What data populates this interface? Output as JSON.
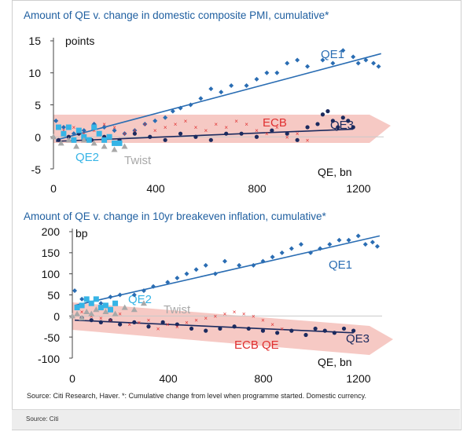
{
  "source_note": "Source: Citi",
  "source_line": "Source: Citi Research, Haver. *: Cumulative change from level when programme started. Domestic currency.",
  "colors": {
    "qe1": "#2a6db3",
    "qe3": "#1b2a5e",
    "ecb": "#e03030",
    "qe2": "#36b4e6",
    "twist": "#a8a8a8",
    "arrow": "#f6c9c4",
    "title": "#1f5fa0"
  },
  "chart_data": [
    {
      "type": "scatter",
      "title": "Amount of QE v. change in domestic composite PMI, cumulative*",
      "ylabel": "points",
      "xlabel": "QE, bn",
      "xlim": [
        0,
        1300
      ],
      "ylim": [
        -5,
        15
      ],
      "xticks": [
        "0",
        "400",
        "800",
        "1200"
      ],
      "yticks": [
        "15",
        "10",
        "5",
        "0",
        "-5"
      ],
      "series": [
        {
          "name": "QE1",
          "x": [
            10,
            40,
            80,
            120,
            160,
            200,
            240,
            280,
            320,
            360,
            400,
            440,
            470,
            500,
            540,
            580,
            620,
            660,
            700,
            760,
            800,
            840,
            880,
            920,
            960,
            1000,
            1060,
            1100,
            1140,
            1180,
            1200,
            1230,
            1260,
            1280
          ],
          "y": [
            2.5,
            1.5,
            0.5,
            1.0,
            2.0,
            1.5,
            1.0,
            0.5,
            1.0,
            2.0,
            2.5,
            3.0,
            4.0,
            4.5,
            5.0,
            6.0,
            7.5,
            7.0,
            8.0,
            8.0,
            9.0,
            10.0,
            10.0,
            11.5,
            12.0,
            11.0,
            12.0,
            11.5,
            13.5,
            12.5,
            11.5,
            12.0,
            11.5,
            11.0
          ],
          "fit": [
            [
              10,
              -0.5
            ],
            [
              1290,
              13.0
            ]
          ]
        },
        {
          "name": "QE3",
          "x": [
            20,
            60,
            100,
            150,
            200,
            260,
            320,
            380,
            440,
            500,
            560,
            620,
            680,
            740,
            800,
            860,
            920,
            960,
            1000,
            1040,
            1060,
            1080,
            1100,
            1120,
            1140,
            1160,
            1180
          ],
          "y": [
            -0.5,
            0.0,
            0.5,
            -0.5,
            0.0,
            -0.5,
            0.5,
            0.0,
            -0.5,
            0.5,
            0.0,
            -0.5,
            0.5,
            0.5,
            0.0,
            1.0,
            0.5,
            -0.5,
            1.5,
            2.0,
            3.5,
            4.0,
            2.5,
            1.5,
            3.0,
            2.5,
            1.5
          ],
          "fit": [
            [
              10,
              -0.7
            ],
            [
              1180,
              1.2
            ]
          ]
        },
        {
          "name": "ECB",
          "x": [
            40,
            80,
            120,
            160,
            200,
            240,
            280,
            320,
            360,
            400,
            440,
            480,
            520,
            560,
            600,
            640,
            680,
            720,
            760,
            800,
            840,
            880,
            920,
            960,
            1000
          ],
          "y": [
            1.0,
            1.5,
            0.5,
            1.0,
            2.0,
            1.5,
            0.5,
            1.0,
            2.0,
            1.0,
            1.5,
            2.0,
            2.5,
            1.5,
            1.0,
            2.0,
            1.5,
            2.5,
            2.0,
            1.0,
            0.5,
            1.5,
            0.0,
            0.5,
            -0.5
          ]
        },
        {
          "name": "QE2",
          "x": [
            20,
            40,
            60,
            80,
            100,
            120,
            140,
            160,
            180,
            200,
            220,
            240,
            260
          ],
          "y": [
            1.5,
            0.5,
            1.5,
            -0.5,
            1.0,
            0.0,
            -0.5,
            1.5,
            0.5,
            -0.5,
            0.0,
            -1.0,
            -1.0
          ]
        },
        {
          "name": "Twist",
          "x": [
            0,
            30,
            60,
            90,
            120,
            160,
            200,
            240,
            280
          ],
          "y": [
            0.0,
            -1.0,
            -0.5,
            -1.5,
            -0.5,
            -1.0,
            -1.5,
            -2.0,
            -1.5
          ]
        }
      ]
    },
    {
      "type": "scatter",
      "title": "Amount of QE v. change in 10yr breakeven inflation, cumulative*",
      "ylabel": "bp",
      "xlabel": "QE, bn",
      "xlim": [
        0,
        1300
      ],
      "ylim": [
        -100,
        200
      ],
      "xticks": [
        "0",
        "400",
        "800",
        "1200"
      ],
      "yticks": [
        "200",
        "150",
        "100",
        "50",
        "0",
        "-50",
        "-100"
      ],
      "series": [
        {
          "name": "QE1",
          "x": [
            10,
            40,
            80,
            120,
            160,
            200,
            260,
            300,
            340,
            400,
            440,
            480,
            520,
            560,
            600,
            640,
            700,
            760,
            800,
            840,
            880,
            920,
            960,
            1000,
            1040,
            1080,
            1120,
            1160,
            1200,
            1230,
            1260,
            1280
          ],
          "y": [
            60,
            40,
            30,
            30,
            45,
            50,
            50,
            60,
            70,
            80,
            90,
            100,
            110,
            120,
            100,
            130,
            120,
            120,
            130,
            140,
            150,
            160,
            170,
            150,
            160,
            170,
            180,
            180,
            190,
            170,
            175,
            165
          ],
          "fit": [
            [
              10,
              25
            ],
            [
              1290,
              190
            ]
          ]
        },
        {
          "name": "QE3",
          "x": [
            40,
            80,
            120,
            160,
            200,
            260,
            320,
            380,
            440,
            500,
            560,
            620,
            680,
            740,
            800,
            860,
            920,
            980,
            1020,
            1060,
            1100,
            1140,
            1180
          ],
          "y": [
            -5,
            -10,
            -15,
            -10,
            -20,
            -15,
            -25,
            -15,
            -20,
            -30,
            -35,
            -30,
            -25,
            -30,
            -35,
            -40,
            -35,
            -45,
            -30,
            -35,
            -40,
            -30,
            -35
          ],
          "fit": [
            [
              10,
              -10
            ],
            [
              1180,
              -40
            ]
          ]
        },
        {
          "name": "ECB",
          "x": [
            40,
            80,
            120,
            160,
            200,
            240,
            280,
            320,
            360,
            400,
            440,
            480,
            520,
            560,
            600,
            640,
            680,
            720,
            760,
            800,
            840,
            880
          ],
          "y": [
            10,
            0,
            -5,
            -10,
            5,
            -20,
            -15,
            -10,
            -30,
            -20,
            -25,
            -15,
            -10,
            -5,
            0,
            5,
            10,
            5,
            0,
            -10,
            -20,
            -30
          ]
        },
        {
          "name": "QE2",
          "x": [
            20,
            40,
            60,
            80,
            100,
            120,
            140,
            160,
            180
          ],
          "y": [
            20,
            25,
            40,
            30,
            40,
            20,
            25,
            15,
            30
          ]
        },
        {
          "name": "Twist",
          "x": [
            0,
            20,
            40,
            60,
            80,
            100,
            140,
            180,
            220,
            260,
            300
          ],
          "y": [
            0,
            5,
            -5,
            10,
            5,
            15,
            10,
            5,
            20,
            15,
            30
          ]
        }
      ]
    }
  ],
  "chart1": {
    "title": "Amount of QE v. change in domestic composite PMI, cumulative*",
    "unit": "points",
    "xlabel": "QE, bn",
    "ylabels": [
      "15",
      "10",
      "5",
      "0",
      "-5"
    ],
    "xlabels": [
      "0",
      "400",
      "800",
      "1200"
    ],
    "series_labels": {
      "qe1": "QE1",
      "qe3": "QE3",
      "ecb": "ECB",
      "qe2": "QE2",
      "twist": "Twist"
    }
  },
  "chart2": {
    "title": "Amount of QE v. change in 10yr breakeven inflation, cumulative*",
    "unit": "bp",
    "xlabel": "QE, bn",
    "ylabels": [
      "200",
      "150",
      "100",
      "50",
      "0",
      "-50",
      "-100"
    ],
    "xlabels": [
      "0",
      "400",
      "800",
      "1200"
    ],
    "series_labels": {
      "qe1": "QE1",
      "qe2": "QE2",
      "twist": "Twist",
      "ecbqe": "ECB QE",
      "qe3": "QE3"
    }
  }
}
